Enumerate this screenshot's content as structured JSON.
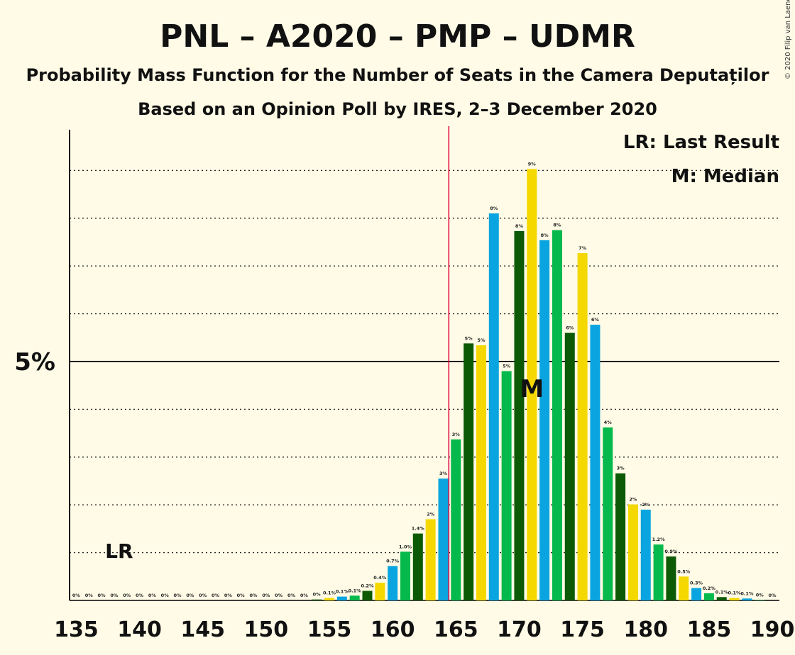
{
  "chart_data": {
    "type": "bar",
    "title": "PNL – A2020 – PMP – UDMR",
    "subtitle": "Probability Mass Function for the Number of Seats in the Camera Deputaților",
    "subtitle2": "Based on an Opinion Poll by IRES, 2–3 December 2020",
    "copyright": "© 2020 Filip van Laenen",
    "legend": {
      "lr": "LR: Last Result",
      "median": "M: Median",
      "position": "top-right"
    },
    "y_major_label": "5%",
    "y_major_value": 5,
    "ylim": [
      0,
      9.8
    ],
    "y_minor_gridlines": [
      1,
      2,
      3,
      4,
      6,
      7,
      8,
      9
    ],
    "xlim": [
      135,
      190
    ],
    "x_ticks": [
      135,
      140,
      145,
      150,
      155,
      160,
      165,
      170,
      175,
      180,
      185,
      190
    ],
    "last_result": {
      "x": 165,
      "label": "LR",
      "label_x": 138
    },
    "median": {
      "x": 171,
      "label": "M"
    },
    "colors": [
      "#f5d800",
      "#0aa5e0",
      "#06b94c",
      "#0c5a05"
    ],
    "colors_start": 135,
    "lr_color": "#e0003c",
    "bars": [
      {
        "x": 135,
        "value": 0,
        "label": "0%"
      },
      {
        "x": 136,
        "value": 0,
        "label": "0%"
      },
      {
        "x": 137,
        "value": 0,
        "label": "0%"
      },
      {
        "x": 138,
        "value": 0,
        "label": "0%"
      },
      {
        "x": 139,
        "value": 0,
        "label": "0%"
      },
      {
        "x": 140,
        "value": 0,
        "label": "0%"
      },
      {
        "x": 141,
        "value": 0,
        "label": "0%"
      },
      {
        "x": 142,
        "value": 0,
        "label": "0%"
      },
      {
        "x": 143,
        "value": 0,
        "label": "0%"
      },
      {
        "x": 144,
        "value": 0,
        "label": "0%"
      },
      {
        "x": 145,
        "value": 0,
        "label": "0%"
      },
      {
        "x": 146,
        "value": 0,
        "label": "0%"
      },
      {
        "x": 147,
        "value": 0,
        "label": "0%"
      },
      {
        "x": 148,
        "value": 0,
        "label": "0%"
      },
      {
        "x": 149,
        "value": 0,
        "label": "0%"
      },
      {
        "x": 150,
        "value": 0,
        "label": "0%"
      },
      {
        "x": 151,
        "value": 0,
        "label": "0%"
      },
      {
        "x": 152,
        "value": 0,
        "label": "0%"
      },
      {
        "x": 153,
        "value": 0,
        "label": "0%"
      },
      {
        "x": 154,
        "value": 0.02,
        "label": "0%"
      },
      {
        "x": 155,
        "value": 0.05,
        "label": "0.1%"
      },
      {
        "x": 156,
        "value": 0.08,
        "label": "0.1%"
      },
      {
        "x": 157,
        "value": 0.1,
        "label": "0.1%"
      },
      {
        "x": 158,
        "value": 0.2,
        "label": "0.2%"
      },
      {
        "x": 159,
        "value": 0.37,
        "label": "0.4%"
      },
      {
        "x": 160,
        "value": 0.72,
        "label": "0.7%"
      },
      {
        "x": 161,
        "value": 1.02,
        "label": "1.0%"
      },
      {
        "x": 162,
        "value": 1.4,
        "label": "1.4%"
      },
      {
        "x": 163,
        "value": 1.7,
        "label": "2%"
      },
      {
        "x": 164,
        "value": 2.55,
        "label": "3%"
      },
      {
        "x": 165,
        "value": 3.37,
        "label": "3%"
      },
      {
        "x": 166,
        "value": 5.38,
        "label": "5%"
      },
      {
        "x": 167,
        "value": 5.34,
        "label": "5%"
      },
      {
        "x": 168,
        "value": 8.1,
        "label": "8%"
      },
      {
        "x": 169,
        "value": 4.8,
        "label": "5%"
      },
      {
        "x": 170,
        "value": 7.73,
        "label": "8%"
      },
      {
        "x": 171,
        "value": 9.03,
        "label": "9%"
      },
      {
        "x": 172,
        "value": 7.54,
        "label": "8%"
      },
      {
        "x": 173,
        "value": 7.75,
        "label": "8%"
      },
      {
        "x": 174,
        "value": 5.6,
        "label": "6%"
      },
      {
        "x": 175,
        "value": 7.27,
        "label": "7%"
      },
      {
        "x": 176,
        "value": 5.77,
        "label": "6%"
      },
      {
        "x": 177,
        "value": 3.62,
        "label": "4%"
      },
      {
        "x": 178,
        "value": 2.66,
        "label": "3%"
      },
      {
        "x": 179,
        "value": 2.01,
        "label": "2%"
      },
      {
        "x": 180,
        "value": 1.9,
        "label": "2%"
      },
      {
        "x": 181,
        "value": 1.17,
        "label": "1.2%"
      },
      {
        "x": 182,
        "value": 0.92,
        "label": "0.9%"
      },
      {
        "x": 183,
        "value": 0.5,
        "label": "0.5%"
      },
      {
        "x": 184,
        "value": 0.26,
        "label": "0.3%"
      },
      {
        "x": 185,
        "value": 0.15,
        "label": "0.2%"
      },
      {
        "x": 186,
        "value": 0.07,
        "label": "0.1%"
      },
      {
        "x": 187,
        "value": 0.05,
        "label": "0.1%"
      },
      {
        "x": 188,
        "value": 0.04,
        "label": "0.1%"
      },
      {
        "x": 189,
        "value": 0.01,
        "label": "0%"
      },
      {
        "x": 190,
        "value": 0,
        "label": "0%"
      }
    ]
  }
}
